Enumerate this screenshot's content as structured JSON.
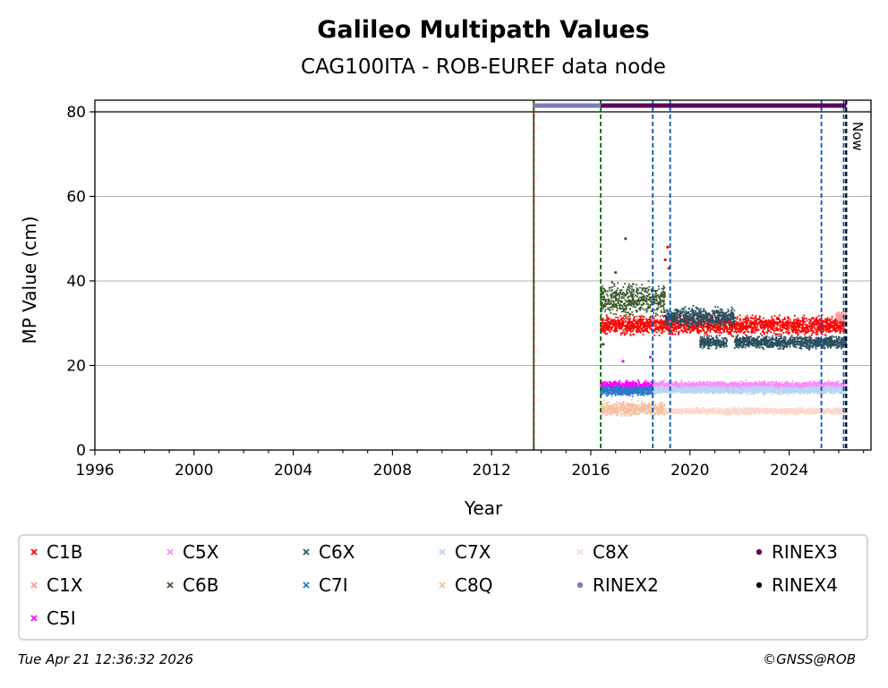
{
  "chart_data": {
    "type": "scatter",
    "title": "Galileo Multipath Values",
    "subtitle": "CAG100ITA - ROB-EUREF data node",
    "xlabel": "Year",
    "ylabel": "MP Value (cm)",
    "xlim": [
      1996,
      2027.3
    ],
    "ylim": [
      0,
      80
    ],
    "xticks": [
      1996,
      2000,
      2004,
      2008,
      2012,
      2016,
      2020,
      2024
    ],
    "yticks": [
      0,
      20,
      40,
      60,
      80
    ],
    "grid": "horizontal",
    "now_label": "Now",
    "now_year": 2026.3,
    "vertical_events": [
      {
        "year": 2013.7,
        "color": "#c00000"
      },
      {
        "year": 2013.7,
        "color": "#007000"
      },
      {
        "year": 2016.4,
        "color": "#007000"
      },
      {
        "year": 2018.5,
        "color": "#0057b7"
      },
      {
        "year": 2019.2,
        "color": "#0057b7"
      },
      {
        "year": 2025.3,
        "color": "#0057b7"
      },
      {
        "year": 2026.2,
        "color": "#0057b7"
      },
      {
        "year": 2026.3,
        "color": "#000000"
      }
    ],
    "rinex_bars": [
      {
        "name": "RINEX2",
        "start": 2013.7,
        "end": 2016.4,
        "color": "#7b7bbf"
      },
      {
        "name": "RINEX3",
        "start": 2016.4,
        "end": 2026.3,
        "color": "#5c005c"
      }
    ],
    "series": [
      {
        "name": "C1B",
        "color": "#ff0000",
        "marker": "x",
        "segments": [
          {
            "start": 2016.4,
            "end": 2026.3,
            "mean": 29.5,
            "spread": 3
          }
        ],
        "spikes": [
          {
            "year": 2019.1,
            "value": 48
          },
          {
            "year": 2019.0,
            "value": 45
          },
          {
            "year": 2019.15,
            "value": 43
          }
        ]
      },
      {
        "name": "C1X",
        "color": "#ff9999",
        "marker": "x",
        "segments": [
          {
            "start": 2025.9,
            "end": 2026.3,
            "mean": 31.5,
            "spread": 2
          }
        ]
      },
      {
        "name": "C5I",
        "color": "#ff00ff",
        "marker": "x",
        "segments": [
          {
            "start": 2016.4,
            "end": 2018.5,
            "mean": 15.2,
            "spread": 1.5
          }
        ],
        "spikes": [
          {
            "year": 2017.3,
            "value": 21
          },
          {
            "year": 2018.4,
            "value": 22
          }
        ]
      },
      {
        "name": "C5X",
        "color": "#ff88ff",
        "marker": "x",
        "segments": [
          {
            "start": 2018.5,
            "end": 2026.3,
            "mean": 15.3,
            "spread": 1.2
          }
        ]
      },
      {
        "name": "C6B",
        "color": "#3b5a2a",
        "marker": "x",
        "segments": [
          {
            "start": 2016.4,
            "end": 2019.0,
            "mean": 35.5,
            "spread": 5
          }
        ],
        "spikes": [
          {
            "year": 2017.4,
            "value": 50
          },
          {
            "year": 2016.5,
            "value": 25
          },
          {
            "year": 2017.0,
            "value": 42
          }
        ]
      },
      {
        "name": "C6X",
        "color": "#2a5060",
        "marker": "x",
        "segments": [
          {
            "start": 2019.0,
            "end": 2021.8,
            "mean": 31.5,
            "spread": 3
          },
          {
            "start": 2021.8,
            "end": 2026.3,
            "mean": 25.5,
            "spread": 2
          },
          {
            "start": 2020.4,
            "end": 2021.5,
            "mean": 25.5,
            "spread": 2
          }
        ]
      },
      {
        "name": "C7I",
        "color": "#2c78c8",
        "marker": "x",
        "segments": [
          {
            "start": 2016.4,
            "end": 2018.5,
            "mean": 14.0,
            "spread": 1.5
          }
        ]
      },
      {
        "name": "C7X",
        "color": "#b8d4f0",
        "marker": "x",
        "segments": [
          {
            "start": 2018.5,
            "end": 2026.3,
            "mean": 14.2,
            "spread": 1.2
          }
        ]
      },
      {
        "name": "C8Q",
        "color": "#f5c0a0",
        "marker": "x",
        "segments": [
          {
            "start": 2016.4,
            "end": 2019.0,
            "mean": 9.8,
            "spread": 2.2
          }
        ]
      },
      {
        "name": "C8X",
        "color": "#fbd9cc",
        "marker": "x",
        "segments": [
          {
            "start": 2019.0,
            "end": 2026.3,
            "mean": 9.2,
            "spread": 1.0
          }
        ]
      },
      {
        "name": "RINEX2",
        "color": "#7b7bbf",
        "marker": "o",
        "segments": []
      },
      {
        "name": "RINEX3",
        "color": "#5c005c",
        "marker": "o",
        "segments": []
      },
      {
        "name": "RINEX4",
        "color": "#1a001a",
        "marker": "o",
        "segments": []
      }
    ],
    "legend": {
      "placement": "bottom",
      "entries": [
        {
          "name": "C1B",
          "color": "#ff0000",
          "marker": "x"
        },
        {
          "name": "C5X",
          "color": "#ff88ff",
          "marker": "x"
        },
        {
          "name": "C6X",
          "color": "#2a5060",
          "marker": "x"
        },
        {
          "name": "C7X",
          "color": "#b8d4f0",
          "marker": "x"
        },
        {
          "name": "C8X",
          "color": "#fbd9cc",
          "marker": "x"
        },
        {
          "name": "RINEX3",
          "color": "#5c005c",
          "marker": "o"
        },
        {
          "name": "C1X",
          "color": "#ff9999",
          "marker": "x"
        },
        {
          "name": "C6B",
          "color": "#3b5a2a",
          "marker": "x"
        },
        {
          "name": "C7I",
          "color": "#2c78c8",
          "marker": "x"
        },
        {
          "name": "C8Q",
          "color": "#f5c0a0",
          "marker": "x"
        },
        {
          "name": "RINEX2",
          "color": "#7b7bbf",
          "marker": "o"
        },
        {
          "name": "RINEX4",
          "color": "#1a001a",
          "marker": "o"
        },
        {
          "name": "C5I",
          "color": "#ff00ff",
          "marker": "x"
        }
      ]
    }
  },
  "footer": {
    "timestamp": "Tue Apr 21 12:36:32 2026",
    "credit": "©GNSS@ROB"
  }
}
